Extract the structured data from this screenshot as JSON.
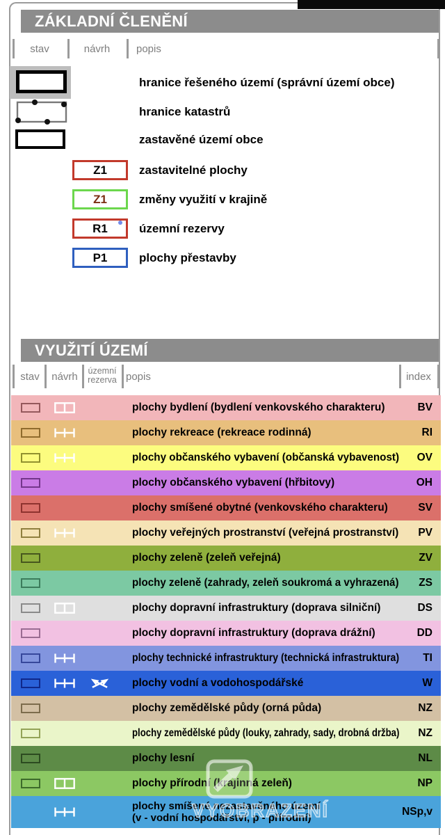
{
  "watermark": {
    "text": "VYOBRAZENÍ"
  },
  "section_basic": {
    "title": "ZÁKLADNÍ ČLENĚNÍ",
    "columns": {
      "stav": "stav",
      "navrh": "návrh",
      "popis": "popis"
    },
    "boundary_items": [
      {
        "symbol": "solved-territory-boundary",
        "label": "hranice řešeného území (správní území obce)"
      },
      {
        "symbol": "cadastre-boundary",
        "label": "hranice katastrů"
      },
      {
        "symbol": "built-up-area-boundary",
        "label": "zastavěné území obce"
      }
    ],
    "code_items": [
      {
        "code": "Z1",
        "label": "zastavitelné plochy",
        "border_color": "#c2392b",
        "code_color": "#000000"
      },
      {
        "code": "Z1",
        "label": "změny využití v krajině",
        "border_color": "#6cd74d",
        "code_color": "#7b2d12"
      },
      {
        "code": "R1",
        "label": "územní rezervy",
        "border_color": "#c2392b",
        "code_color": "#000000"
      },
      {
        "code": "P1",
        "label": "plochy přestavby",
        "border_color": "#2f5fbf",
        "code_color": "#000000"
      }
    ]
  },
  "section_usage": {
    "title": "VYUŽITÍ ÚZEMÍ",
    "columns": {
      "stav": "stav",
      "navrh": "návrh",
      "rezerva_line1": "územní",
      "rezerva_line2": "rezerva",
      "popis": "popis",
      "index": "index"
    },
    "rows": [
      {
        "popis": "plochy bydlení (bydlení venkovského charakteru)",
        "index": "BV",
        "bg": "#f2b6ba",
        "stav_border": "#95585c",
        "stav": true,
        "navrh": "cells",
        "rezerva": false
      },
      {
        "popis": "plochy rekreace (rekreace rodinná)",
        "index": "RI",
        "bg": "#e8bf7d",
        "stav_border": "#8f6b2d",
        "stav": true,
        "navrh": "ladder",
        "rezerva": false
      },
      {
        "popis": "plochy občanského vybavení (občanská vybavenost)",
        "index": "OV",
        "bg": "#fcfc7f",
        "stav_border": "#91912f",
        "stav": true,
        "navrh": "ladder",
        "rezerva": false
      },
      {
        "popis": "plochy občanského vybavení (hřbitovy)",
        "index": "OH",
        "bg": "#ca7ce6",
        "stav_border": "#73368b",
        "stav": true,
        "navrh": null,
        "rezerva": false
      },
      {
        "popis": "plochy smíšené obytné (venkovského charakteru)",
        "index": "SV",
        "bg": "#db706a",
        "stav_border": "#8e332f",
        "stav": true,
        "navrh": null,
        "rezerva": false
      },
      {
        "popis": "plochy veřejných prostranství (veřejná prostranství)",
        "index": "PV",
        "bg": "#f5e3b5",
        "stav_border": "#8f7f3f",
        "stav": true,
        "navrh": "ladder",
        "rezerva": false
      },
      {
        "popis": "plochy zeleně (zeleň veřejná)",
        "index": "ZV",
        "bg": "#8faf3d",
        "stav_border": "#47571e",
        "stav": true,
        "navrh": null,
        "rezerva": false
      },
      {
        "popis": "plochy zeleně (zahrady, zeleň soukromá a vyhrazená)",
        "index": "ZS",
        "bg": "#7cc9a3",
        "stav_border": "#3c7c5c",
        "stav": true,
        "navrh": null,
        "rezerva": false
      },
      {
        "popis": "plochy dopravní infrastruktury (doprava silniční)",
        "index": "DS",
        "bg": "#dfdfdf",
        "stav_border": "#8a8a8a",
        "stav": true,
        "navrh": "cells",
        "rezerva": false
      },
      {
        "popis": "plochy dopravní infrastruktury (doprava drážní)",
        "index": "DD",
        "bg": "#f2c1e2",
        "stav_border": "#9a6c92",
        "stav": true,
        "navrh": null,
        "rezerva": false
      },
      {
        "popis": "plochy technické infrastruktury (technická infrastruktura)",
        "index": "TI",
        "bg": "#8295df",
        "stav_border": "#36479b",
        "stav": true,
        "navrh": "ladder",
        "rezerva": false
      },
      {
        "popis": "plochy vodní a vodohospodářské",
        "index": "W",
        "bg": "#2a61d8",
        "stav_border": "#10288a",
        "stav": true,
        "navrh": "ladder",
        "rezerva": true
      },
      {
        "popis": "plochy zemědělské půdy (orná půda)",
        "index": "NZ",
        "bg": "#d3c0a4",
        "stav_border": "#7c6c4c",
        "stav": true,
        "navrh": null,
        "rezerva": false
      },
      {
        "popis": "plochy zemědělské půdy (louky, zahrady, sady, drobná držba)",
        "index": "NZ",
        "bg": "#eaf5c9",
        "stav_border": "#93a357",
        "stav": true,
        "navrh": null,
        "rezerva": false
      },
      {
        "popis": "plochy lesní",
        "index": "NL",
        "bg": "#5d8b47",
        "stav_border": "#2c4a20",
        "stav": true,
        "navrh": null,
        "rezerva": false
      },
      {
        "popis": "plochy přírodní (krajinná zeleň)",
        "index": "NP",
        "bg": "#8cc863",
        "stav_border": "#3d6b2b",
        "stav": true,
        "navrh": "cells",
        "rezerva": false
      },
      {
        "popis": "plochy smíšené nezastavěného území",
        "popis2": "(v - vodní hospodářství, p - přírodní)",
        "index": "NSp,v",
        "bg": "#4aa3db",
        "stav_border": null,
        "stav": false,
        "navrh": "ladder",
        "rezerva": false
      }
    ]
  }
}
